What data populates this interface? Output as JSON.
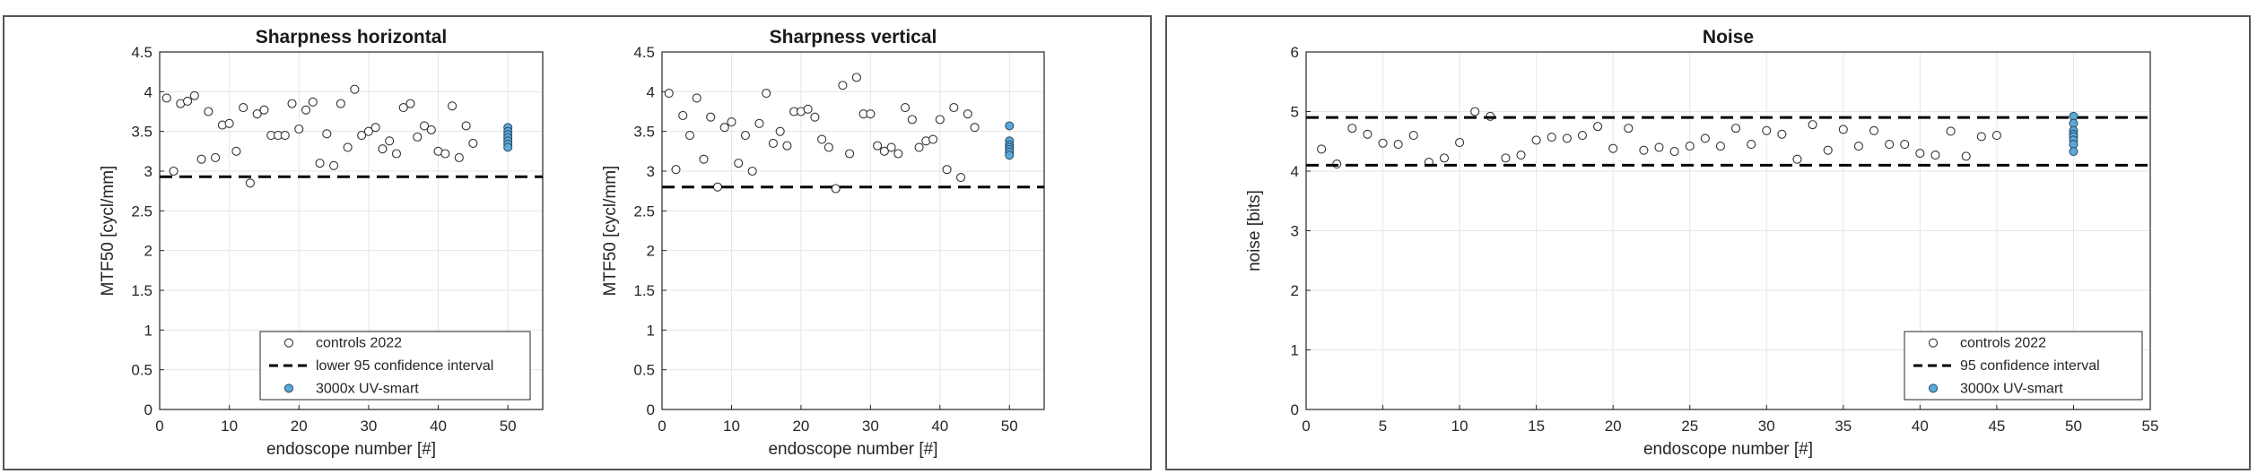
{
  "chart_data": [
    {
      "type": "scatter",
      "title": "Sharpness horizontal",
      "xlabel": "endoscope number [#]",
      "ylabel": "MTF50 [cycl/mm]",
      "xlim": [
        0,
        55
      ],
      "ylim": [
        0,
        4.5
      ],
      "xticks": [
        "0",
        "10",
        "20",
        "30",
        "40",
        "50"
      ],
      "yticks": [
        "0",
        "0.5",
        "1",
        "1.5",
        "2",
        "2.5",
        "3",
        "3.5",
        "4",
        "4.5"
      ],
      "grid": true,
      "legend_placement": "bottom-center",
      "series": [
        {
          "name": "controls 2022",
          "marker": "open-circle",
          "x": [
            1,
            2,
            3,
            4,
            5,
            6,
            7,
            8,
            9,
            10,
            11,
            12,
            13,
            14,
            15,
            16,
            17,
            18,
            19,
            20,
            21,
            22,
            23,
            24,
            25,
            26,
            27,
            28,
            29,
            30,
            31,
            32,
            33,
            34,
            35,
            36,
            37,
            38,
            39,
            40,
            41,
            42,
            43,
            44,
            45
          ],
          "y": [
            3.92,
            3.0,
            3.85,
            3.88,
            3.95,
            3.15,
            3.75,
            3.17,
            3.58,
            3.6,
            3.25,
            3.8,
            2.85,
            3.72,
            3.77,
            3.45,
            3.45,
            3.45,
            3.85,
            3.53,
            3.77,
            3.87,
            3.1,
            3.47,
            3.07,
            3.85,
            3.3,
            4.03,
            3.45,
            3.5,
            3.55,
            3.28,
            3.38,
            3.22,
            3.8,
            3.85,
            3.43,
            3.57,
            3.52,
            3.25,
            3.22,
            3.82,
            3.17,
            3.57,
            3.35
          ]
        },
        {
          "name": "lower 95 confidence interval",
          "marker": "dashed-line",
          "y": 2.93
        },
        {
          "name": "3000x UV-smart",
          "marker": "filled-circle",
          "color": "#5aa9d6",
          "x": [
            50,
            50,
            50,
            50,
            50,
            50,
            50
          ],
          "y": [
            3.55,
            3.5,
            3.46,
            3.42,
            3.38,
            3.34,
            3.3
          ]
        }
      ]
    },
    {
      "type": "scatter",
      "title": "Sharpness vertical",
      "xlabel": "endoscope number [#]",
      "ylabel": "MTF50 [cycl/mm]",
      "xlim": [
        0,
        55
      ],
      "ylim": [
        0,
        4.5
      ],
      "xticks": [
        "0",
        "10",
        "20",
        "30",
        "40",
        "50"
      ],
      "yticks": [
        "0",
        "0.5",
        "1",
        "1.5",
        "2",
        "2.5",
        "3",
        "3.5",
        "4",
        "4.5"
      ],
      "grid": true,
      "series": [
        {
          "name": "controls 2022",
          "marker": "open-circle",
          "x": [
            1,
            2,
            3,
            4,
            5,
            6,
            7,
            8,
            9,
            10,
            11,
            12,
            13,
            14,
            15,
            16,
            17,
            18,
            19,
            20,
            21,
            22,
            23,
            24,
            25,
            26,
            27,
            28,
            29,
            30,
            31,
            32,
            33,
            34,
            35,
            36,
            37,
            38,
            39,
            40,
            41,
            42,
            43,
            44,
            45
          ],
          "y": [
            3.98,
            3.02,
            3.7,
            3.45,
            3.92,
            3.15,
            3.68,
            2.8,
            3.55,
            3.62,
            3.1,
            3.45,
            3.0,
            3.6,
            3.98,
            3.35,
            3.5,
            3.32,
            3.75,
            3.75,
            3.78,
            3.68,
            3.4,
            3.3,
            2.78,
            4.08,
            3.22,
            4.18,
            3.72,
            3.72,
            3.32,
            3.25,
            3.3,
            3.22,
            3.8,
            3.65,
            3.3,
            3.38,
            3.4,
            3.65,
            3.02,
            3.8,
            2.92,
            3.72,
            3.55
          ]
        },
        {
          "name": "lower 95 confidence interval",
          "marker": "dashed-line",
          "y": 2.8
        },
        {
          "name": "3000x UV-smart",
          "marker": "filled-circle",
          "color": "#5aa9d6",
          "x": [
            50,
            50,
            50,
            50,
            50,
            50,
            50
          ],
          "y": [
            3.57,
            3.38,
            3.33,
            3.3,
            3.27,
            3.24,
            3.2
          ]
        }
      ]
    },
    {
      "type": "scatter",
      "title": "Noise",
      "xlabel": "endoscope number [#]",
      "ylabel": "noise [bits]",
      "xlim": [
        0,
        55
      ],
      "ylim": [
        0,
        6
      ],
      "xticks": [
        "0",
        "5",
        "10",
        "15",
        "20",
        "25",
        "30",
        "35",
        "40",
        "45",
        "50",
        "55"
      ],
      "yticks": [
        "0",
        "1",
        "2",
        "3",
        "4",
        "5",
        "6"
      ],
      "grid": true,
      "legend_placement": "bottom-right",
      "series": [
        {
          "name": "controls 2022",
          "marker": "open-circle",
          "x": [
            1,
            2,
            3,
            4,
            5,
            6,
            7,
            8,
            9,
            10,
            11,
            12,
            13,
            14,
            15,
            16,
            17,
            18,
            19,
            20,
            21,
            22,
            23,
            24,
            25,
            26,
            27,
            28,
            29,
            30,
            31,
            32,
            33,
            34,
            35,
            36,
            37,
            38,
            39,
            40,
            41,
            42,
            43,
            44,
            45
          ],
          "y": [
            4.37,
            4.12,
            4.72,
            4.62,
            4.47,
            4.45,
            4.6,
            4.15,
            4.22,
            4.48,
            5.0,
            4.92,
            4.22,
            4.27,
            4.52,
            4.57,
            4.55,
            4.6,
            4.75,
            4.38,
            4.72,
            4.35,
            4.4,
            4.33,
            4.42,
            4.55,
            4.42,
            4.72,
            4.45,
            4.68,
            4.62,
            4.2,
            4.78,
            4.35,
            4.7,
            4.42,
            4.68,
            4.45,
            4.45,
            4.3,
            4.27,
            4.67,
            4.25,
            4.58,
            4.6
          ]
        },
        {
          "name": "95 confidence interval",
          "marker": "dashed-line",
          "y_upper": 4.9,
          "y_lower": 4.1
        },
        {
          "name": "3000x UV-smart",
          "marker": "filled-circle",
          "color": "#5aa9d6",
          "x": [
            50,
            50,
            50,
            50,
            50,
            50,
            50,
            50
          ],
          "y": [
            4.92,
            4.8,
            4.68,
            4.62,
            4.58,
            4.52,
            4.45,
            4.33
          ]
        }
      ]
    }
  ]
}
